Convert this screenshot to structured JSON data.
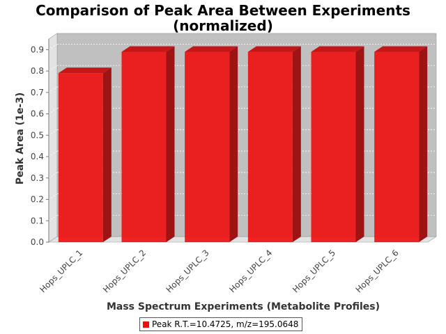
{
  "colors": {
    "series": "#ee1111",
    "plot_back": "#c0c0c0",
    "plot_side": "#e3e3e3"
  },
  "chart_data": {
    "type": "bar",
    "title": "Comparison of Peak Area Between Experiments",
    "subtitle": "(normalized)",
    "xlabel": "Mass Spectrum Experiments (Metabolite Profiles)",
    "ylabel": "Peak Area (1e-3)",
    "categories": [
      "Hops_UPLC_1",
      "Hops_UPLC_2",
      "Hops_UPLC_3",
      "Hops_UPLC_4",
      "Hops_UPLC_5",
      "Hops_UPLC_6"
    ],
    "series": [
      {
        "name": "Peak R.T.=10.4725, m/z=195.0648",
        "values": [
          0.79,
          0.89,
          0.89,
          0.89,
          0.89,
          0.89
        ]
      }
    ],
    "ylim": [
      0,
      0.95
    ],
    "yticks": [
      0.0,
      0.1,
      0.2,
      0.3,
      0.4,
      0.5,
      0.6,
      0.7,
      0.8,
      0.9
    ],
    "grid": true,
    "legend_position": "bottom-center",
    "style": "3d"
  }
}
